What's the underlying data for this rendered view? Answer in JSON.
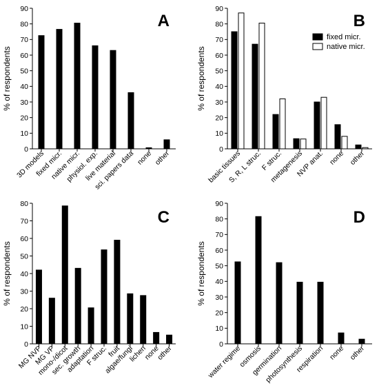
{
  "chart_data": [
    {
      "panel": "A",
      "type": "bar",
      "ylabel": "% of respondents",
      "ylim": [
        0,
        90
      ],
      "yticks": [
        0,
        10,
        20,
        30,
        40,
        50,
        60,
        70,
        80,
        90
      ],
      "categories": [
        "3D models",
        "fixed micr.",
        "native micr.",
        "physiol. exp.",
        "live material",
        "sci. papers data",
        "none",
        "other"
      ],
      "series": [
        {
          "values": [
            72.5,
            76.5,
            80.5,
            66,
            63,
            36,
            0.7,
            5.8
          ],
          "color": "#000000"
        }
      ]
    },
    {
      "panel": "B",
      "type": "bar",
      "ylabel": "% of respondents",
      "ylim": [
        0,
        90
      ],
      "yticks": [
        0,
        10,
        20,
        30,
        40,
        50,
        60,
        70,
        80,
        90
      ],
      "categories": [
        "basic tissues",
        "S, R, L struc.",
        "F struc.",
        "metagenesis",
        "NVP anat.",
        "none",
        "other"
      ],
      "legend_position": "top-right",
      "series": [
        {
          "name": "fixed micr.",
          "values": [
            75,
            67,
            22,
            6.5,
            30,
            15.5,
            2.5
          ],
          "color": "#000000"
        },
        {
          "name": "native micr.",
          "values": [
            87,
            80.5,
            32,
            6.3,
            33,
            8,
            0.8
          ],
          "color": "#ffffff"
        }
      ]
    },
    {
      "panel": "C",
      "type": "bar",
      "ylabel": "% of respondents",
      "ylim": [
        0,
        80
      ],
      "yticks": [
        0,
        10,
        20,
        30,
        40,
        50,
        60,
        70,
        80
      ],
      "categories": [
        "MG NVP",
        "MG VP",
        "mono-/dicot",
        "sec. growth",
        "adaptation",
        "F struc.",
        "fruit",
        "algae/fungi",
        "lichen",
        "none",
        "other"
      ],
      "series": [
        {
          "values": [
            42,
            26,
            78.5,
            43,
            20.5,
            53.5,
            59,
            28.5,
            27.5,
            6.5,
            5
          ],
          "color": "#000000"
        }
      ]
    },
    {
      "panel": "D",
      "type": "bar",
      "ylabel": "% of respondents",
      "ylim": [
        0,
        90
      ],
      "yticks": [
        0,
        10,
        20,
        30,
        40,
        50,
        60,
        70,
        80,
        90
      ],
      "categories": [
        "water regime",
        "osmosis",
        "germination",
        "photosynthesis",
        "respiration",
        "none",
        "other"
      ],
      "series": [
        {
          "values": [
            52.5,
            81.5,
            52,
            39.5,
            39.5,
            7,
            3
          ],
          "color": "#000000"
        }
      ]
    }
  ]
}
